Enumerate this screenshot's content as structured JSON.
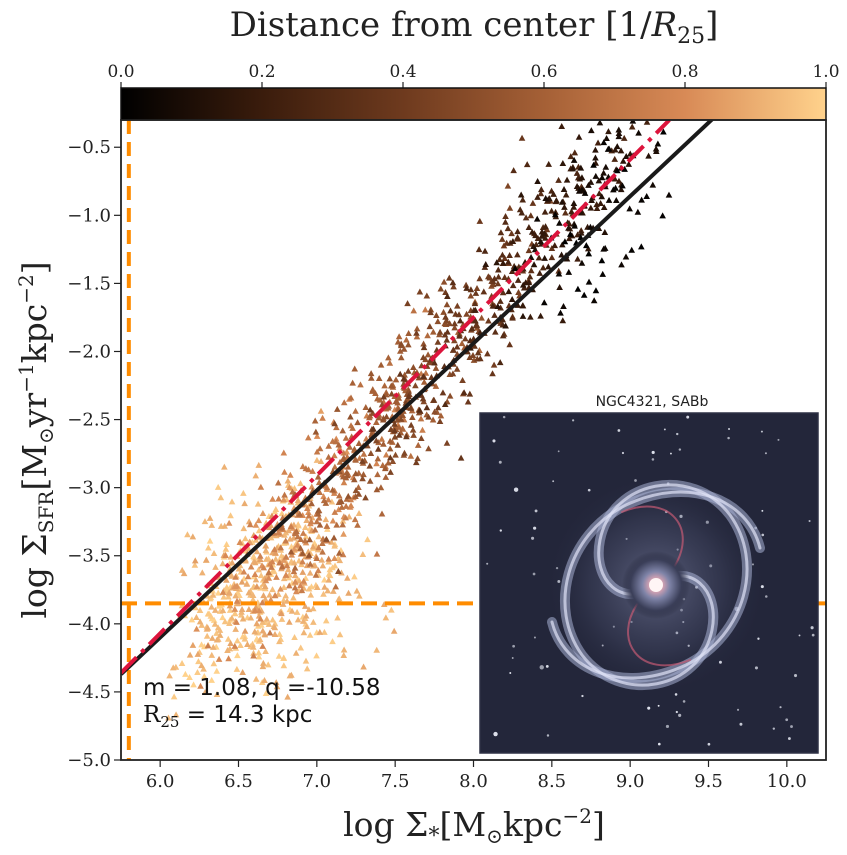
{
  "chart_data": {
    "type": "scatter",
    "title": "",
    "colorbar": {
      "label_prefix": "Distance from center [1/",
      "label_symbol": "R",
      "label_subscript": "25",
      "label_suffix": "]",
      "range": [
        0.0,
        1.0
      ],
      "ticks": [
        0.0,
        0.2,
        0.4,
        0.6,
        0.8,
        1.0
      ],
      "tick_labels": [
        "0.0",
        "0.2",
        "0.4",
        "0.6",
        "0.8",
        "1.0"
      ],
      "colormap": [
        "#000000",
        "#3a1c0c",
        "#6e3a1e",
        "#a56036",
        "#d88a56",
        "#ffd28c"
      ]
    },
    "xlabel": {
      "prefix": "log Σ",
      "subscript": "*",
      "bracket_open": "[M",
      "sun": "⊙",
      "unit": "kpc",
      "exponent": "−2",
      "bracket_close": "]"
    },
    "ylabel": {
      "prefix": "log Σ",
      "subscript": "SFR",
      "bracket_open": "[M",
      "sun": "⊙",
      "unit1": "yr",
      "exponent1": "−1",
      "unit2": "kpc",
      "exponent2": "−2",
      "bracket_close": "]"
    },
    "xlim": [
      5.75,
      10.25
    ],
    "ylim": [
      -5.0,
      -0.3
    ],
    "xticks": [
      6.0,
      6.5,
      7.0,
      7.5,
      8.0,
      8.5,
      9.0,
      9.5,
      10.0
    ],
    "xtick_labels": [
      "6.0",
      "6.5",
      "7.0",
      "7.5",
      "8.0",
      "8.5",
      "9.0",
      "9.5",
      "10.0"
    ],
    "yticks": [
      -5.0,
      -4.5,
      -4.0,
      -3.5,
      -3.0,
      -2.5,
      -2.0,
      -1.5,
      -1.0,
      -0.5
    ],
    "ytick_labels": [
      "−5.0",
      "−4.5",
      "−4.0",
      "−3.5",
      "−3.0",
      "−2.5",
      "−2.0",
      "−1.5",
      "−1.0",
      "−0.5"
    ],
    "fit_line": {
      "color": "#1a1a1a",
      "slope": 1.08,
      "intercept": -10.58
    },
    "dashdot_line": {
      "color": "#dc143c",
      "points": [
        [
          5.75,
          -4.36
        ],
        [
          9.25,
          -0.3
        ]
      ]
    },
    "threshold_x": {
      "value": 5.8,
      "color": "#ff8c00"
    },
    "threshold_y": {
      "value": -3.85,
      "color": "#ff8c00"
    },
    "scatter_distribution": {
      "marker": "triangle",
      "n_points": 1450,
      "log_sigma_star_range": [
        6.0,
        9.25
      ],
      "color_by": "distance",
      "mean_relation": {
        "center_x": 7.3,
        "center_y": -2.7,
        "slope": 1.35
      },
      "outer_clump_center": [
        6.75,
        -3.75
      ],
      "inner_tail_end": [
        9.1,
        -0.9
      ]
    },
    "annotation_fit": "m = 1.08, q =-10.58",
    "annotation_r25_prefix": "R",
    "annotation_r25_sub": "25",
    "annotation_r25_value": " = 14.3 kpc",
    "inset": {
      "title": "NGC4321, SABb",
      "image_description_icon": "spiral-galaxy"
    }
  }
}
